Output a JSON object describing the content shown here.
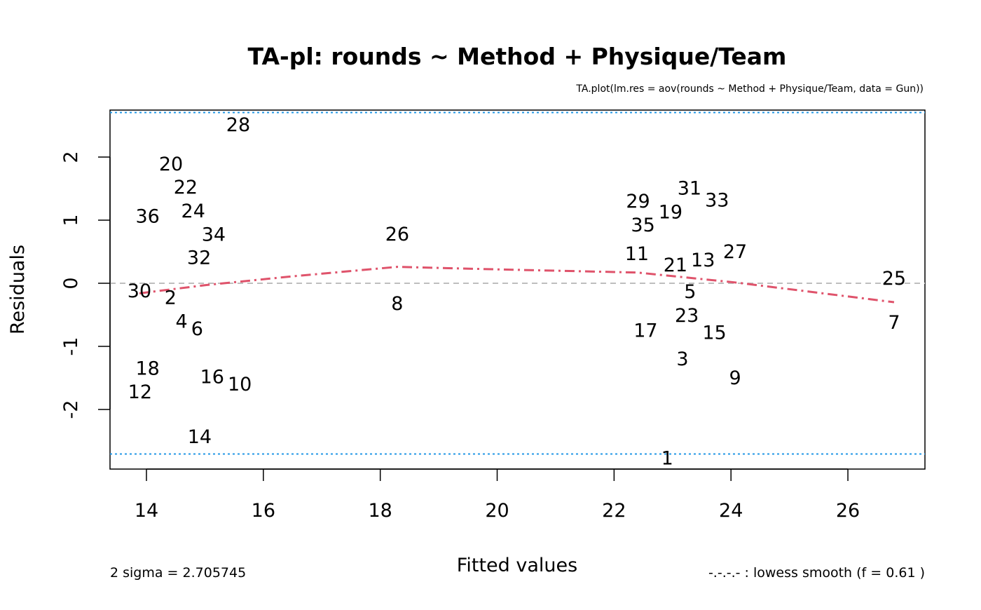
{
  "chart_data": {
    "type": "scatter",
    "title": "TA-pl: rounds ~ Method + Physique/Team",
    "subtitle": "TA.plot(lm.res = aov(rounds ~ Method + Physique/Team, data = Gun))",
    "xlabel": "Fitted values",
    "ylabel": "Residuals",
    "xlim": [
      13.4,
      27.4
    ],
    "ylim": [
      -2.95,
      2.75
    ],
    "xticks": [
      14,
      16,
      18,
      20,
      22,
      24,
      26
    ],
    "yticks": [
      -2,
      -1,
      0,
      1,
      2
    ],
    "sigma_value": 2.705745,
    "sigma_note": "2 sigma =  2.705745",
    "lowess_note": "-.-.-.- : lowess smooth (f = 0.61  )",
    "points": [
      {
        "label": "1",
        "x": 22.91,
        "y": -2.76
      },
      {
        "label": "2",
        "x": 14.42,
        "y": -0.23
      },
      {
        "label": "3",
        "x": 23.17,
        "y": -1.19
      },
      {
        "label": "4",
        "x": 14.67,
        "y": -0.58
      },
      {
        "label": "5",
        "x": 23.3,
        "y": -0.21
      },
      {
        "label": "6",
        "x": 14.79,
        "y": -0.71
      },
      {
        "label": "7",
        "x": 26.79,
        "y": -0.61
      },
      {
        "label": "8",
        "x": 18.29,
        "y": -0.31
      },
      {
        "label": "9",
        "x": 24.07,
        "y": -1.49
      },
      {
        "label": "10",
        "x": 15.57,
        "y": -1.59
      },
      {
        "label": "11",
        "x": 22.39,
        "y": 0.48
      },
      {
        "label": "12",
        "x": 13.89,
        "y": -1.71
      },
      {
        "label": "13",
        "x": 23.41,
        "y": 0.38
      },
      {
        "label": "14",
        "x": 14.91,
        "y": -2.42
      },
      {
        "label": "15",
        "x": 23.66,
        "y": -0.77
      },
      {
        "label": "16",
        "x": 15.15,
        "y": -1.47
      },
      {
        "label": "17",
        "x": 22.54,
        "y": -0.74
      },
      {
        "label": "18",
        "x": 14.02,
        "y": -1.34
      },
      {
        "label": "19",
        "x": 22.93,
        "y": 1.17
      },
      {
        "label": "20",
        "x": 14.42,
        "y": 1.77
      },
      {
        "label": "21",
        "x": 23.16,
        "y": 0.3
      },
      {
        "label": "22",
        "x": 14.67,
        "y": 1.41
      },
      {
        "label": "23",
        "x": 23.3,
        "y": -0.41
      },
      {
        "label": "24",
        "x": 14.8,
        "y": 1.29
      },
      {
        "label": "25",
        "x": 26.79,
        "y": 0.09
      },
      {
        "label": "26",
        "x": 18.29,
        "y": 0.79
      },
      {
        "label": "27",
        "x": 24.07,
        "y": 0.51
      },
      {
        "label": "28",
        "x": 15.57,
        "y": 2.52
      },
      {
        "label": "29",
        "x": 22.41,
        "y": 1.29
      },
      {
        "label": "30",
        "x": 13.88,
        "y": -0.11
      },
      {
        "label": "31",
        "x": 23.39,
        "y": 1.49
      },
      {
        "label": "32",
        "x": 14.9,
        "y": 0.49
      },
      {
        "label": "33",
        "x": 23.66,
        "y": 1.33
      },
      {
        "label": "34",
        "x": 15.15,
        "y": 0.83
      },
      {
        "label": "35",
        "x": 22.53,
        "y": 0.96
      },
      {
        "label": "36",
        "x": 14.02,
        "y": 1.07
      }
    ],
    "lowess": [
      {
        "x": 13.88,
        "y": -0.16
      },
      {
        "x": 15.0,
        "y": -0.03
      },
      {
        "x": 16.5,
        "y": 0.11
      },
      {
        "x": 18.29,
        "y": 0.26
      },
      {
        "x": 20.0,
        "y": 0.22
      },
      {
        "x": 22.4,
        "y": 0.17
      },
      {
        "x": 24.1,
        "y": 0.01
      },
      {
        "x": 26.79,
        "y": -0.3
      }
    ],
    "colors": {
      "lowess": "#DF536B",
      "sigma": "#2297E6",
      "zero": "#BEBEBE"
    }
  }
}
